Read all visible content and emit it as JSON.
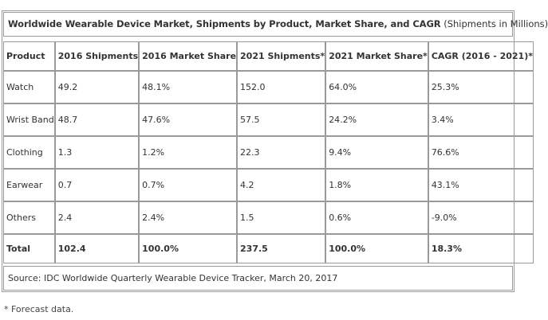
{
  "chart_data": {
    "type": "table",
    "title": "Worldwide Wearable Device Market, Shipments by Product, Market Share, and CAGR",
    "title_note": "(Shipments in Millions)",
    "columns": [
      "Product",
      "2016 Shipments",
      "2016 Market Share",
      "2021 Shipments*",
      "2021 Market Share*",
      "CAGR (2016 - 2021)*"
    ],
    "rows": [
      [
        "Watch",
        "49.2",
        "48.1%",
        "152.0",
        "64.0%",
        "25.3%"
      ],
      [
        "Wrist Band",
        "48.7",
        "47.6%",
        "57.5",
        "24.2%",
        "3.4%"
      ],
      [
        "Clothing",
        "1.3",
        "1.2%",
        "22.3",
        "9.4%",
        "76.6%"
      ],
      [
        "Earwear",
        "0.7",
        "0.7%",
        "4.2",
        "1.8%",
        "43.1%"
      ],
      [
        "Others",
        "2.4",
        "2.4%",
        "1.5",
        "0.6%",
        "-9.0%"
      ]
    ],
    "total": [
      "Total",
      "102.4",
      "100.0%",
      "237.5",
      "100.0%",
      "18.3%"
    ],
    "source": "Source: IDC Worldwide Quarterly Wearable Device Tracker, March 20, 2017",
    "footnote": "* Forecast data."
  },
  "colors": {
    "border": "#9a9a9a",
    "text": "#333333"
  }
}
